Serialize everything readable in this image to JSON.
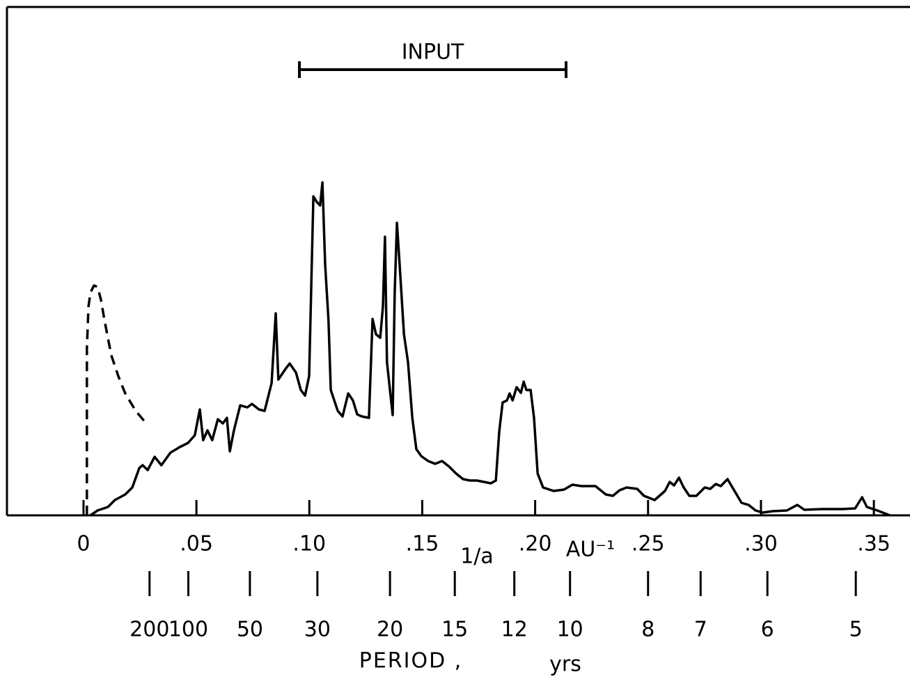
{
  "chart_data": {
    "type": "line",
    "annotation": {
      "text": "INPUT",
      "range": [
        0.0956,
        0.2137
      ],
      "y": 64
    },
    "x_label": [
      "1/a",
      "AU⁻¹"
    ],
    "x2_label": [
      "PERIOD ,",
      "yrs"
    ],
    "xlim": [
      -0.0339,
      0.366
    ],
    "ylim": [
      0,
      73
    ],
    "xticks": [
      0,
      {
        "value": 0.05,
        "label": ".05"
      },
      {
        "value": 0.1,
        "label": ".10"
      },
      {
        "value": 0.15,
        "label": ".15"
      },
      {
        "value": 0.2,
        "label": ".20"
      },
      {
        "value": 0.25,
        "label": ".25"
      },
      {
        "value": 0.3,
        "label": ".30"
      },
      {
        "value": 0.35,
        "label": ".35"
      }
    ],
    "x2ticks": [
      200,
      100,
      50,
      30,
      20,
      15,
      12,
      10,
      8,
      7,
      6,
      5
    ],
    "series": [
      {
        "color": "#000000",
        "dash": false,
        "x": [
          0.0031,
          0.0062,
          0.0108,
          0.0139,
          0.0185,
          0.0216,
          0.0247,
          0.0262,
          0.0284,
          0.0315,
          0.0345,
          0.0385,
          0.0426,
          0.0463,
          0.0493,
          0.0515,
          0.053,
          0.0549,
          0.057,
          0.0595,
          0.0617,
          0.0635,
          0.0648,
          0.0666,
          0.0694,
          0.0725,
          0.0746,
          0.0777,
          0.0802,
          0.0833,
          0.0851,
          0.0863,
          0.0894,
          0.0913,
          0.0941,
          0.0962,
          0.0981,
          0.0999,
          0.1018,
          0.1033,
          0.1048,
          0.1058,
          0.107,
          0.1085,
          0.1095,
          0.1126,
          0.1147,
          0.1172,
          0.1193,
          0.1212,
          0.1233,
          0.1264,
          0.128,
          0.1295,
          0.1314,
          0.1326,
          0.1335,
          0.1344,
          0.1357,
          0.1369,
          0.1378,
          0.1388,
          0.14,
          0.1419,
          0.1437,
          0.1456,
          0.1474,
          0.1496,
          0.1526,
          0.1557,
          0.1588,
          0.1619,
          0.165,
          0.1681,
          0.1711,
          0.1742,
          0.1773,
          0.1804,
          0.1826,
          0.1841,
          0.1856,
          0.1875,
          0.1887,
          0.19,
          0.1918,
          0.1937,
          0.1949,
          0.1961,
          0.198,
          0.1995,
          0.2011,
          0.2035,
          0.2082,
          0.2128,
          0.2165,
          0.2205,
          0.2267,
          0.2313,
          0.2344,
          0.2374,
          0.2405,
          0.2452,
          0.2482,
          0.2529,
          0.2575,
          0.2596,
          0.2615,
          0.2637,
          0.2658,
          0.2683,
          0.2714,
          0.2751,
          0.2775,
          0.28,
          0.2822,
          0.2852,
          0.2883,
          0.2914,
          0.2945,
          0.2976,
          0.3007,
          0.3053,
          0.3115,
          0.3161,
          0.3192,
          0.3269,
          0.3361,
          0.3417,
          0.3448,
          0.3469,
          0.3515,
          0.3571
        ],
        "values": [
          0,
          0.7,
          1.2,
          2.2,
          3,
          4,
          6.8,
          7.2,
          6.5,
          8.4,
          7.2,
          9,
          9.8,
          10.4,
          11.5,
          15.2,
          10.8,
          12.2,
          10.8,
          13.8,
          13.2,
          14,
          9.2,
          12.2,
          15.8,
          15.5,
          16,
          15.2,
          15,
          19,
          29,
          19.5,
          21,
          21.8,
          20.5,
          18,
          17.2,
          20,
          45.8,
          45,
          44.5,
          47.8,
          36,
          28,
          18,
          15,
          14.2,
          17.5,
          16.5,
          14.5,
          14.2,
          14,
          28.2,
          26,
          25.5,
          30,
          40,
          22,
          18,
          14.4,
          32,
          42,
          36,
          26,
          22,
          14,
          9.5,
          8.5,
          7.8,
          7.4,
          7.8,
          7,
          6,
          5.2,
          5,
          5,
          4.8,
          4.6,
          5,
          12,
          16.2,
          16.5,
          17.5,
          16.5,
          18.4,
          17.6,
          19.2,
          18,
          18,
          14,
          6,
          4,
          3.5,
          3.7,
          4.4,
          4.2,
          4.2,
          3,
          2.8,
          3.6,
          4,
          3.8,
          2.8,
          2.2,
          3.5,
          4.8,
          4.3,
          5.4,
          4,
          2.8,
          2.8,
          4,
          3.8,
          4.5,
          4.2,
          5.2,
          3.5,
          1.8,
          1.5,
          0.7,
          0.4,
          0.6,
          0.7,
          1.5,
          0.8,
          0.9,
          0.9,
          1,
          2.6,
          1.2,
          0.7,
          0
        ]
      },
      {
        "color": "#000000",
        "dash": true,
        "x": [
          0.0015,
          0.0015,
          0.0022,
          0.0031,
          0.0046,
          0.0062,
          0.0077,
          0.0093,
          0.0123,
          0.0154,
          0.0185,
          0.0231,
          0.0278
        ],
        "values": [
          0,
          24,
          30,
          32,
          33,
          32.8,
          31,
          28,
          23,
          20,
          17.5,
          15,
          13.2
        ]
      }
    ]
  }
}
